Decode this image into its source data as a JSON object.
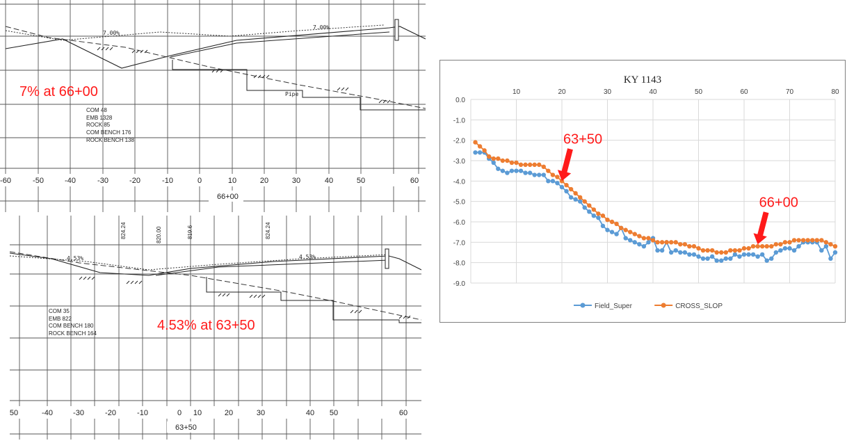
{
  "colors": {
    "annotation_red": "#ff1a1a",
    "field_super": "#5b9bd5",
    "cross_slop": "#ed7d31",
    "grid": "#d9d9d9",
    "drawing_ink": "#222222"
  },
  "section_top": {
    "annotation": "7% at 66+00",
    "station": "66+00",
    "quantities": [
      "COM 48",
      "EMB 1328",
      "ROCK 85",
      "COM BENCH 176",
      "ROCK BENCH 138"
    ],
    "slope_labels": [
      "7.00%",
      "7.00%"
    ],
    "pipe_label": "Pipe",
    "axis_ticks": [
      "-60",
      "-50",
      "-40",
      "-30",
      "-20",
      "-10",
      "0",
      "10",
      "20",
      "30",
      "40",
      "50",
      "60"
    ]
  },
  "section_bottom": {
    "annotation": "4.53% at 63+50",
    "station": "63+50",
    "quantities": [
      "COM 35",
      "EMB 822",
      "COM BENCH 180",
      "ROCK BENCH 164"
    ],
    "slope_labels": [
      "4.53%",
      "4.53%"
    ],
    "elevation_labels": [
      "824.24",
      "820.00",
      "819.6",
      "824.24"
    ],
    "axis_ticks": [
      "50",
      "-40",
      "-30",
      "-20",
      "-10",
      "0",
      "10",
      "20",
      "30",
      "40",
      "50",
      "60"
    ]
  },
  "chart_data": {
    "type": "line",
    "title": "KY 1143",
    "xlabel": "",
    "ylabel": "",
    "xlim": [
      0,
      80
    ],
    "ylim": [
      -9,
      0
    ],
    "x_ticks": [
      10,
      20,
      30,
      40,
      50,
      60,
      70,
      80
    ],
    "y_ticks": [
      0.0,
      -1.0,
      -2.0,
      -3.0,
      -4.0,
      -5.0,
      -6.0,
      -7.0,
      -8.0,
      -9.0
    ],
    "y_tick_labels": [
      "0.0",
      "-1.0",
      "-2.0",
      "-3.0",
      "-4.0",
      "-5.0",
      "-6.0",
      "-7.0",
      "-8.0",
      "-9.0"
    ],
    "grid": true,
    "x_axis_position": "top",
    "legend_position": "bottom",
    "series": [
      {
        "name": "Field_Super",
        "color": "#5b9bd5",
        "x": [
          1,
          2,
          3,
          4,
          5,
          6,
          7,
          8,
          9,
          10,
          11,
          12,
          13,
          14,
          15,
          16,
          17,
          18,
          19,
          20,
          21,
          22,
          23,
          24,
          25,
          26,
          27,
          28,
          29,
          30,
          31,
          32,
          33,
          34,
          35,
          36,
          37,
          38,
          39,
          40,
          41,
          42,
          43,
          44,
          45,
          46,
          47,
          48,
          49,
          50,
          51,
          52,
          53,
          54,
          55,
          56,
          57,
          58,
          59,
          60,
          61,
          62,
          63,
          64,
          65,
          66,
          67,
          68,
          69,
          70,
          71,
          72,
          73,
          74,
          75,
          76,
          77,
          78,
          79,
          80
        ],
        "values": [
          -2.6,
          -2.6,
          -2.6,
          -2.9,
          -3.1,
          -3.4,
          -3.5,
          -3.6,
          -3.5,
          -3.5,
          -3.5,
          -3.6,
          -3.6,
          -3.7,
          -3.7,
          -3.7,
          -4.0,
          -4.0,
          -4.1,
          -4.3,
          -4.5,
          -4.8,
          -4.9,
          -5.0,
          -5.3,
          -5.5,
          -5.7,
          -5.8,
          -6.2,
          -6.4,
          -6.5,
          -6.6,
          -6.3,
          -6.8,
          -6.9,
          -7.0,
          -7.1,
          -7.2,
          -7.0,
          -6.8,
          -7.4,
          -7.4,
          -7.0,
          -7.5,
          -7.4,
          -7.5,
          -7.5,
          -7.6,
          -7.6,
          -7.7,
          -7.8,
          -7.8,
          -7.7,
          -7.9,
          -7.9,
          -7.8,
          -7.8,
          -7.6,
          -7.7,
          -7.6,
          -7.6,
          -7.6,
          -7.7,
          -7.6,
          -7.9,
          -7.8,
          -7.5,
          -7.4,
          -7.3,
          -7.3,
          -7.4,
          -7.2,
          -7.0,
          -7.0,
          -7.0,
          -7.0,
          -7.4,
          -7.2,
          -7.8,
          -7.5
        ]
      },
      {
        "name": "CROSS_SLOP",
        "color": "#ed7d31",
        "x": [
          1,
          2,
          3,
          4,
          5,
          6,
          7,
          8,
          9,
          10,
          11,
          12,
          13,
          14,
          15,
          16,
          17,
          18,
          19,
          20,
          21,
          22,
          23,
          24,
          25,
          26,
          27,
          28,
          29,
          30,
          31,
          32,
          33,
          34,
          35,
          36,
          37,
          38,
          39,
          40,
          41,
          42,
          43,
          44,
          45,
          46,
          47,
          48,
          49,
          50,
          51,
          52,
          53,
          54,
          55,
          56,
          57,
          58,
          59,
          60,
          61,
          62,
          63,
          64,
          65,
          66,
          67,
          68,
          69,
          70,
          71,
          72,
          73,
          74,
          75,
          76,
          77,
          78,
          79,
          80
        ],
        "values": [
          -2.1,
          -2.3,
          -2.5,
          -2.8,
          -2.9,
          -2.9,
          -3.0,
          -3.0,
          -3.1,
          -3.1,
          -3.2,
          -3.2,
          -3.2,
          -3.2,
          -3.2,
          -3.3,
          -3.5,
          -3.7,
          -3.8,
          -4.0,
          -4.2,
          -4.4,
          -4.6,
          -4.8,
          -5.0,
          -5.2,
          -5.4,
          -5.6,
          -5.7,
          -5.9,
          -6.0,
          -6.1,
          -6.3,
          -6.4,
          -6.5,
          -6.6,
          -6.7,
          -6.8,
          -6.8,
          -6.9,
          -7.0,
          -7.0,
          -7.0,
          -7.0,
          -7.0,
          -7.1,
          -7.1,
          -7.2,
          -7.2,
          -7.3,
          -7.4,
          -7.4,
          -7.4,
          -7.5,
          -7.5,
          -7.5,
          -7.4,
          -7.4,
          -7.4,
          -7.3,
          -7.3,
          -7.2,
          -7.2,
          -7.2,
          -7.2,
          -7.2,
          -7.1,
          -7.1,
          -7.0,
          -7.0,
          -6.9,
          -6.9,
          -6.9,
          -6.9,
          -6.9,
          -6.9,
          -6.9,
          -7.0,
          -7.1,
          -7.2
        ]
      }
    ],
    "annotations": [
      {
        "text": "63+50",
        "x": 20,
        "y": -4.0
      },
      {
        "text": "66+00",
        "x": 63,
        "y": -7.1
      }
    ]
  }
}
